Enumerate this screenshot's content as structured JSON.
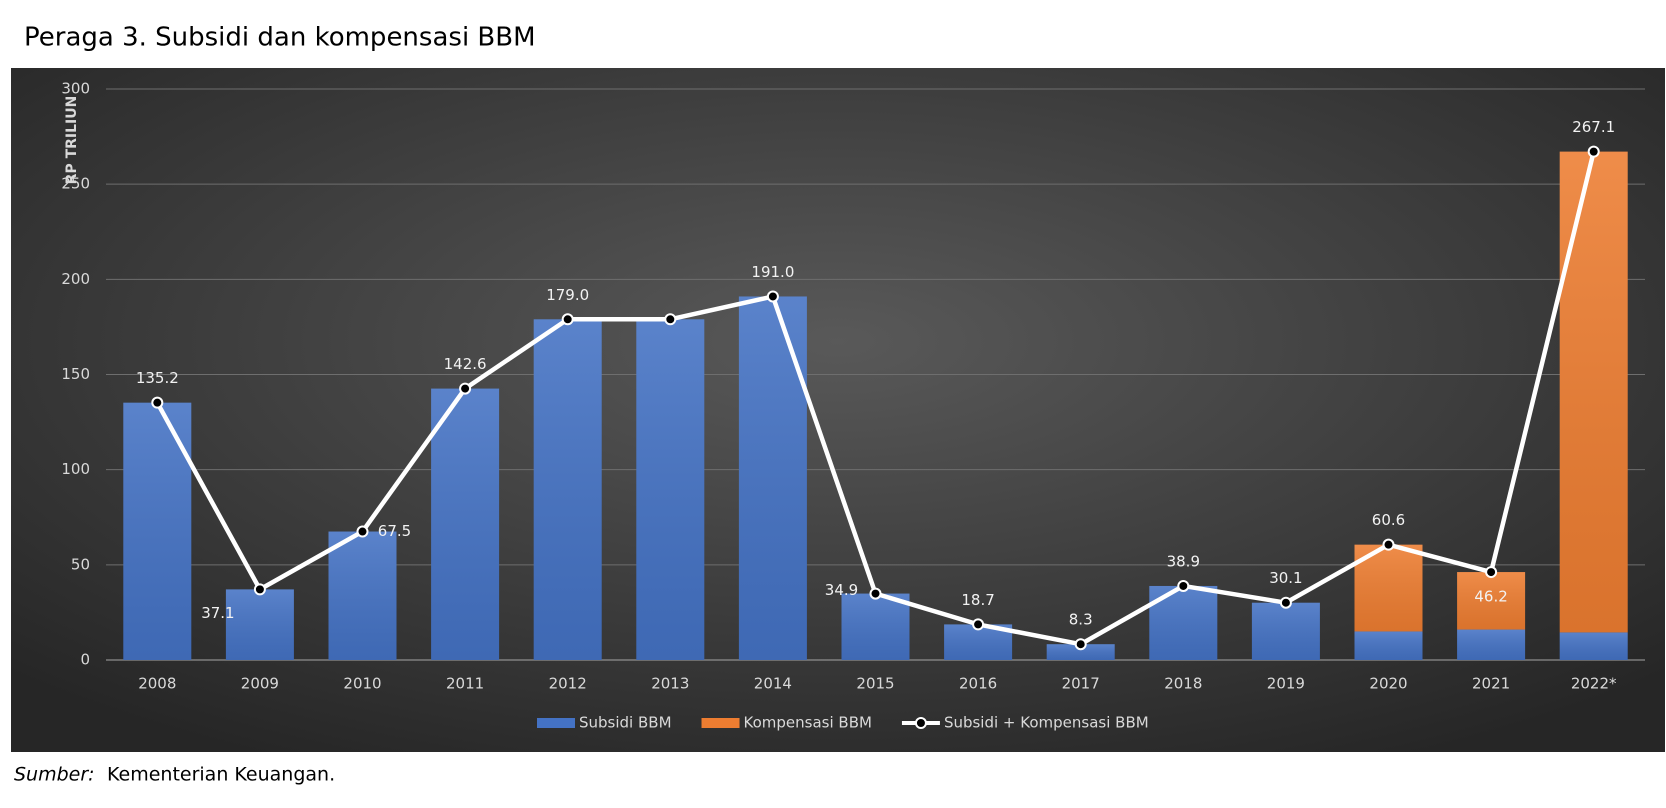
{
  "chart_data": {
    "type": "bar",
    "title": "Peraga 3. Subsidi dan kompensasi BBM",
    "y_label": "RP TRILIUN",
    "categories": [
      "2008",
      "2009",
      "2010",
      "2011",
      "2012",
      "2013",
      "2014",
      "2015",
      "2016",
      "2017",
      "2018",
      "2019",
      "2020",
      "2021",
      "2022*"
    ],
    "series": [
      {
        "name": "Subsidi BBM",
        "type": "bar",
        "color": "#4472c4",
        "values": [
          135.2,
          37.1,
          67.5,
          142.6,
          179.0,
          179.0,
          191.0,
          34.9,
          18.7,
          8.3,
          38.9,
          30.1,
          15,
          16,
          14.5
        ]
      },
      {
        "name": "Kompensasi BBM",
        "type": "bar",
        "color": "#ed7d31",
        "values": [
          null,
          null,
          null,
          null,
          null,
          null,
          null,
          null,
          null,
          null,
          null,
          null,
          45.6,
          30.2,
          252.6
        ]
      },
      {
        "name": "Subsidi + Kompensasi BBM",
        "type": "line",
        "color": "#ffffff",
        "values": [
          135.2,
          37.1,
          67.5,
          142.6,
          179.0,
          179.0,
          191.0,
          34.9,
          18.7,
          8.3,
          38.9,
          30.1,
          60.6,
          46.2,
          267.1
        ],
        "value_labels": [
          "135.2",
          "37.1",
          "67.5",
          "142.6",
          "179.0",
          null,
          "191.0",
          "34.9",
          "18.7",
          "8.3",
          "38.9",
          "30.1",
          "60.6",
          "46.2",
          "267.1"
        ]
      }
    ],
    "ylim": [
      0,
      300
    ],
    "yticks": [
      0,
      50,
      100,
      150,
      200,
      250,
      300
    ],
    "grid": true,
    "legend": "bottom",
    "source": {
      "label": "Sumber:",
      "text": "Kementerian Keuangan."
    }
  }
}
